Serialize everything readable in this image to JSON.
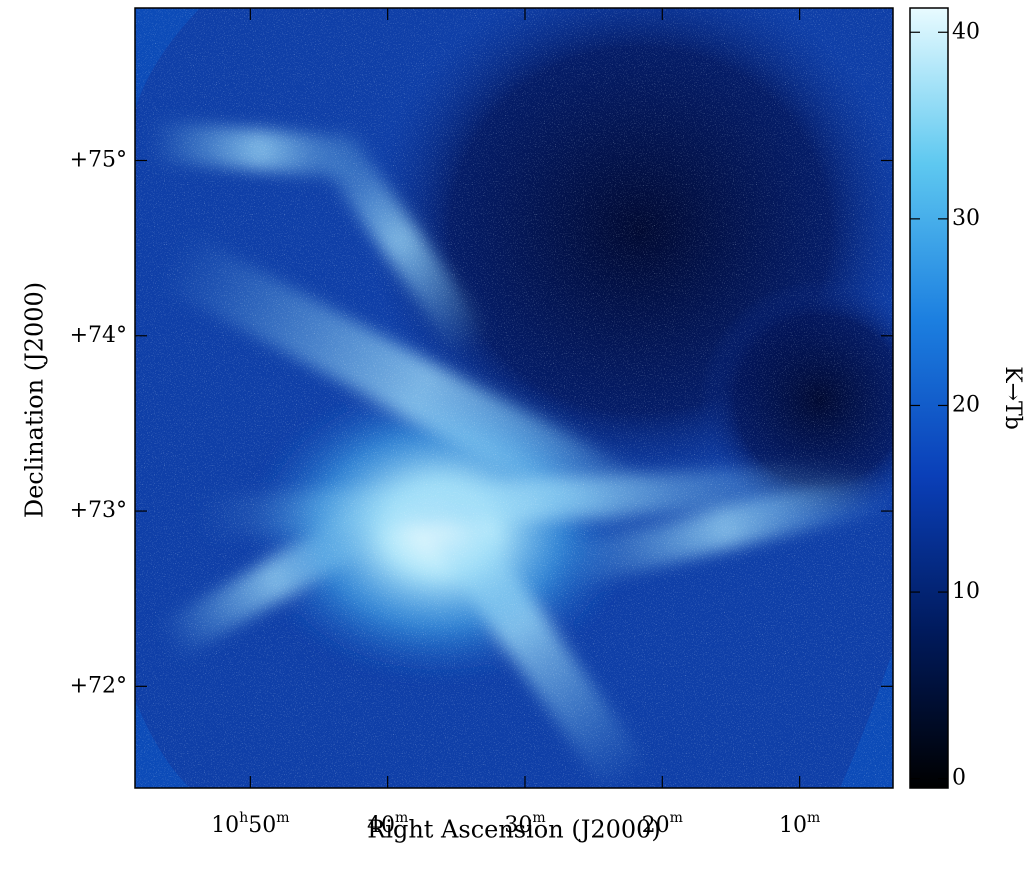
{
  "chart_data": {
    "type": "image",
    "xlabel": "Right Ascension (J2000)",
    "ylabel": "Declination (J2000)",
    "xlim": [
      58.4,
      3.2
    ],
    "xticks": [
      {
        "value": 50,
        "label": "10h50m"
      },
      {
        "value": 40,
        "label": "40m"
      },
      {
        "value": 30,
        "label": "30m"
      },
      {
        "value": 20,
        "label": "20m"
      },
      {
        "value": 10,
        "label": "10m"
      }
    ],
    "ylim": [
      71.42,
      75.87
    ],
    "yticks": [
      {
        "value": 72,
        "label": "+72°"
      },
      {
        "value": 73,
        "label": "+73°"
      },
      {
        "value": 74,
        "label": "+74°"
      },
      {
        "value": 75,
        "label": "+75°"
      }
    ],
    "colorbar": {
      "label": "K→Tb",
      "lim": [
        -0.5,
        41.3
      ],
      "ticks": [
        0,
        10,
        20,
        30,
        40
      ],
      "colormap": [
        "#000000",
        "#001a5c",
        "#0a3fb8",
        "#1c7fe0",
        "#5ec8f0",
        "#e8fbff"
      ]
    }
  }
}
